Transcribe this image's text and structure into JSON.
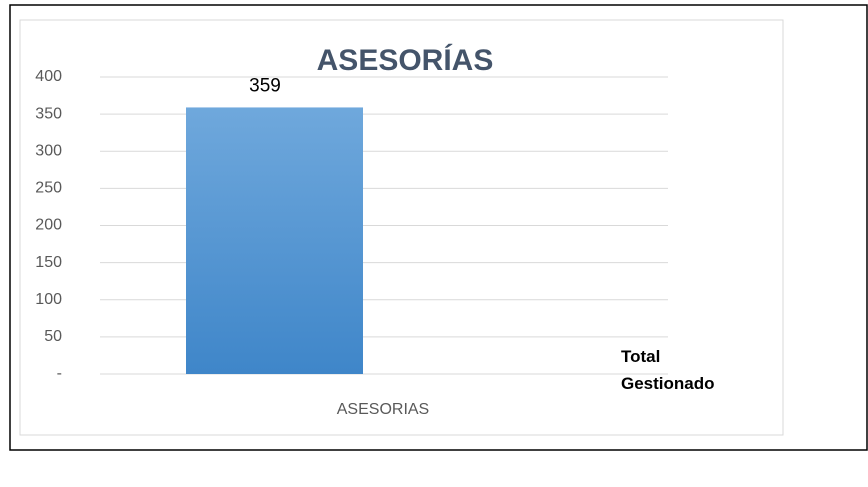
{
  "chart_data": {
    "type": "bar",
    "title": "ASESORÍAS",
    "categories": [
      "ASESORIAS"
    ],
    "series": [
      {
        "name": "Total Gestionado",
        "color": "#5b9bd5",
        "values": [
          359
        ]
      }
    ],
    "ylim": [
      0,
      400
    ],
    "yticks": [
      {
        "value": 0,
        "label": "-"
      },
      50,
      100,
      150,
      200,
      250,
      300,
      350,
      400
    ],
    "grid": true,
    "legend": "right"
  }
}
